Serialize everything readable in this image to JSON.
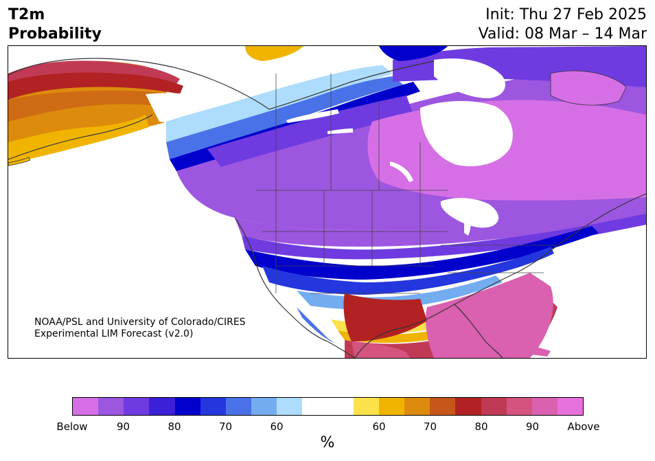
{
  "header": {
    "variable": "T2m",
    "type": "Probability",
    "init": "Init: Thu 27 Feb 2025",
    "valid": "Valid: 08 Mar – 14 Mar"
  },
  "map": {
    "credit_line1": "NOAA/PSL and University of Colorado/CIRES",
    "credit_line2": "Experimental LIM Forecast (v2.0)"
  },
  "colorbar": {
    "colors": [
      "#d66fe6",
      "#9d56e0",
      "#6f3be0",
      "#3a20d6",
      "#0000cc",
      "#2437de",
      "#4a72e8",
      "#74acf0",
      "#addcfc",
      "#ffffff",
      "#ffffff",
      "#fbe24a",
      "#f0b400",
      "#dd8b0c",
      "#c6561a",
      "#b22222",
      "#c13a55",
      "#d4537f",
      "#da60b0",
      "#e671dc"
    ],
    "labels": [
      "Below",
      "90",
      "80",
      "70",
      "60",
      "60",
      "70",
      "80",
      "90",
      "Above"
    ],
    "unit": "%"
  }
}
